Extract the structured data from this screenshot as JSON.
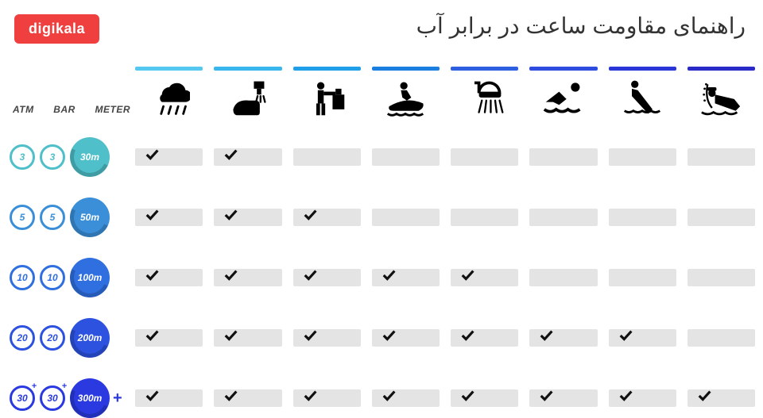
{
  "logo": "digikala",
  "title": "راهنمای مقاومت ساعت در برابر آب",
  "label_cols": {
    "atm": "ATM",
    "bar": "BAR",
    "meter": "METER"
  },
  "activities": [
    {
      "name": "rain",
      "bar_color": "#55c8f2"
    },
    {
      "name": "hand-wash",
      "bar_color": "#38b6ed"
    },
    {
      "name": "work",
      "bar_color": "#1e9fe8"
    },
    {
      "name": "jetski",
      "bar_color": "#1b7fe0"
    },
    {
      "name": "shower",
      "bar_color": "#2d5fe0"
    },
    {
      "name": "swim",
      "bar_color": "#2e4de0"
    },
    {
      "name": "snorkel",
      "bar_color": "#2a36d8"
    },
    {
      "name": "scuba",
      "bar_color": "#2a2ac8"
    }
  ],
  "rows": [
    {
      "atm": "3",
      "bar": "3",
      "meter": "30m",
      "circle_color": "#4fbfc9",
      "meter_color": "#4fbfc9",
      "plus_marks": false,
      "row_plus_color": null,
      "checks": [
        true,
        true,
        false,
        false,
        false,
        false,
        false,
        false
      ]
    },
    {
      "atm": "5",
      "bar": "5",
      "meter": "50m",
      "circle_color": "#3a8fd8",
      "meter_color": "#3a8fd8",
      "plus_marks": false,
      "row_plus_color": null,
      "checks": [
        true,
        true,
        true,
        false,
        false,
        false,
        false,
        false
      ]
    },
    {
      "atm": "10",
      "bar": "10",
      "meter": "100m",
      "circle_color": "#2f6fe0",
      "meter_color": "#2f6fe0",
      "plus_marks": false,
      "row_plus_color": null,
      "checks": [
        true,
        true,
        true,
        true,
        true,
        false,
        false,
        false
      ]
    },
    {
      "atm": "20",
      "bar": "20",
      "meter": "200m",
      "circle_color": "#2d52e0",
      "meter_color": "#2d52e0",
      "plus_marks": false,
      "row_plus_color": null,
      "checks": [
        true,
        true,
        true,
        true,
        true,
        true,
        true,
        false
      ]
    },
    {
      "atm": "30",
      "bar": "30",
      "meter": "300m",
      "circle_color": "#2a3ae0",
      "meter_color": "#2a3ae0",
      "plus_marks": true,
      "row_plus_color": "#2a3ae0",
      "checks": [
        true,
        true,
        true,
        true,
        true,
        true,
        true,
        true
      ]
    }
  ],
  "colors": {
    "logo_bg": "#ef3f3e",
    "cell_bg": "#e4e4e4",
    "background": "#ffffff",
    "check_stroke": "#111111"
  },
  "fontsizes": {
    "title": 28,
    "labels": 12,
    "circles": 12
  }
}
